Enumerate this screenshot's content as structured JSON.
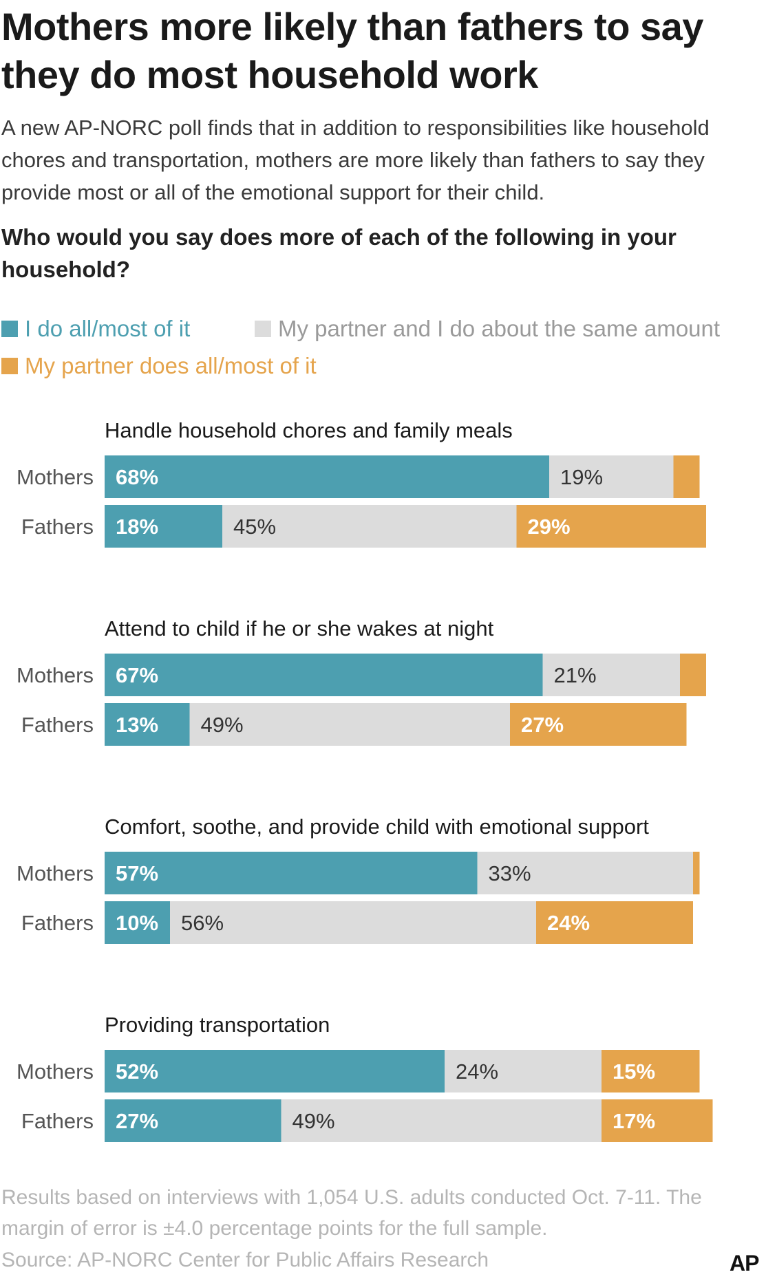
{
  "title": "Mothers more likely than fathers to say they do most household work",
  "subtitle": "A new AP-NORC poll finds that in addition to responsibilities like household chores and transportation, mothers are more likely than fathers to say they provide most or all of the emotional support for their child.",
  "question": "Who would you say does more of each of the following in your household?",
  "legend": [
    {
      "label": "I do all/most of it",
      "color": "#4d9fb0"
    },
    {
      "label": "My partner and I do about the same amount",
      "color": "#dcdcdc"
    },
    {
      "label": "My partner does all/most of it",
      "color": "#e5a44c"
    }
  ],
  "footnote": "Results based on interviews with 1,054 U.S. adults conducted Oct. 7-11. The margin of error is ±4.0 percentage points for the full sample.",
  "source": "Source: AP-NORC Center for Public Affairs Research",
  "logo_text": "AP",
  "chart_data": {
    "type": "bar",
    "orientation": "horizontal",
    "stacked": true,
    "series_order": [
      "I do all/most of it",
      "My partner and I do about the same amount",
      "My partner does all/most of it"
    ],
    "colors": [
      "#4d9fb0",
      "#dcdcdc",
      "#e5a44c"
    ],
    "groups": [
      {
        "title": "Handle household chores and family meals",
        "rows": [
          {
            "label": "Mothers",
            "values": [
              68,
              19,
              4
            ],
            "labels": [
              "68%",
              "19%",
              ""
            ]
          },
          {
            "label": "Fathers",
            "values": [
              18,
              45,
              29
            ],
            "labels": [
              "18%",
              "45%",
              "29%"
            ]
          }
        ]
      },
      {
        "title": "Attend to child if he or she wakes at night",
        "rows": [
          {
            "label": "Mothers",
            "values": [
              67,
              21,
              4
            ],
            "labels": [
              "67%",
              "21%",
              ""
            ]
          },
          {
            "label": "Fathers",
            "values": [
              13,
              49,
              27
            ],
            "labels": [
              "13%",
              "49%",
              "27%"
            ]
          }
        ]
      },
      {
        "title": "Comfort, soothe, and provide child with emotional support",
        "rows": [
          {
            "label": "Mothers",
            "values": [
              57,
              33,
              1
            ],
            "labels": [
              "57%",
              "33%",
              ""
            ]
          },
          {
            "label": "Fathers",
            "values": [
              10,
              56,
              24
            ],
            "labels": [
              "10%",
              "56%",
              "24%"
            ]
          }
        ]
      },
      {
        "title": "Providing transportation",
        "rows": [
          {
            "label": "Mothers",
            "values": [
              52,
              24,
              15
            ],
            "labels": [
              "52%",
              "24%",
              "15%"
            ]
          },
          {
            "label": "Fathers",
            "values": [
              27,
              49,
              17
            ],
            "labels": [
              "27%",
              "49%",
              "17%"
            ]
          }
        ]
      }
    ]
  }
}
